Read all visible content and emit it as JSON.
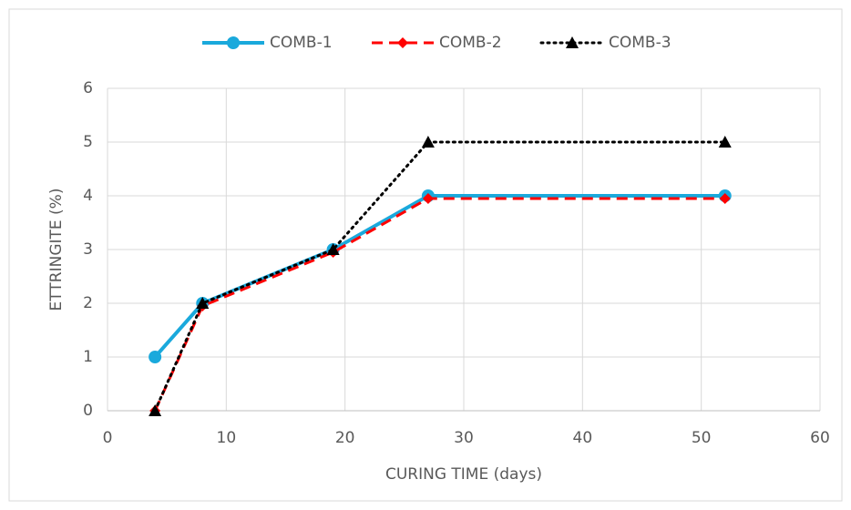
{
  "chart_data": {
    "type": "line",
    "x_label": "CURING TIME (days)",
    "y_label": "ETTRINGITE (%)",
    "x": [
      4,
      8,
      19,
      27,
      52
    ],
    "series": [
      {
        "name": "COMB-1",
        "color": "#1aa9dc",
        "line_style": "solid",
        "marker": "circle",
        "values": [
          1,
          2,
          3,
          4,
          4
        ]
      },
      {
        "name": "COMB-2",
        "color": "#ff0000",
        "line_style": "dashed",
        "marker": "diamond",
        "values": [
          0,
          1.95,
          2.95,
          3.95,
          3.95
        ]
      },
      {
        "name": "COMB-3",
        "color": "#000000",
        "line_style": "dotted",
        "marker": "triangle",
        "values": [
          0,
          2,
          3,
          5,
          5
        ]
      }
    ],
    "xlim": [
      0,
      60
    ],
    "xticks": [
      0,
      10,
      20,
      30,
      40,
      50,
      60
    ],
    "ylim": [
      0,
      6
    ],
    "yticks": [
      0,
      1,
      2,
      3,
      4,
      5,
      6
    ],
    "grid": true,
    "legend": "top"
  }
}
